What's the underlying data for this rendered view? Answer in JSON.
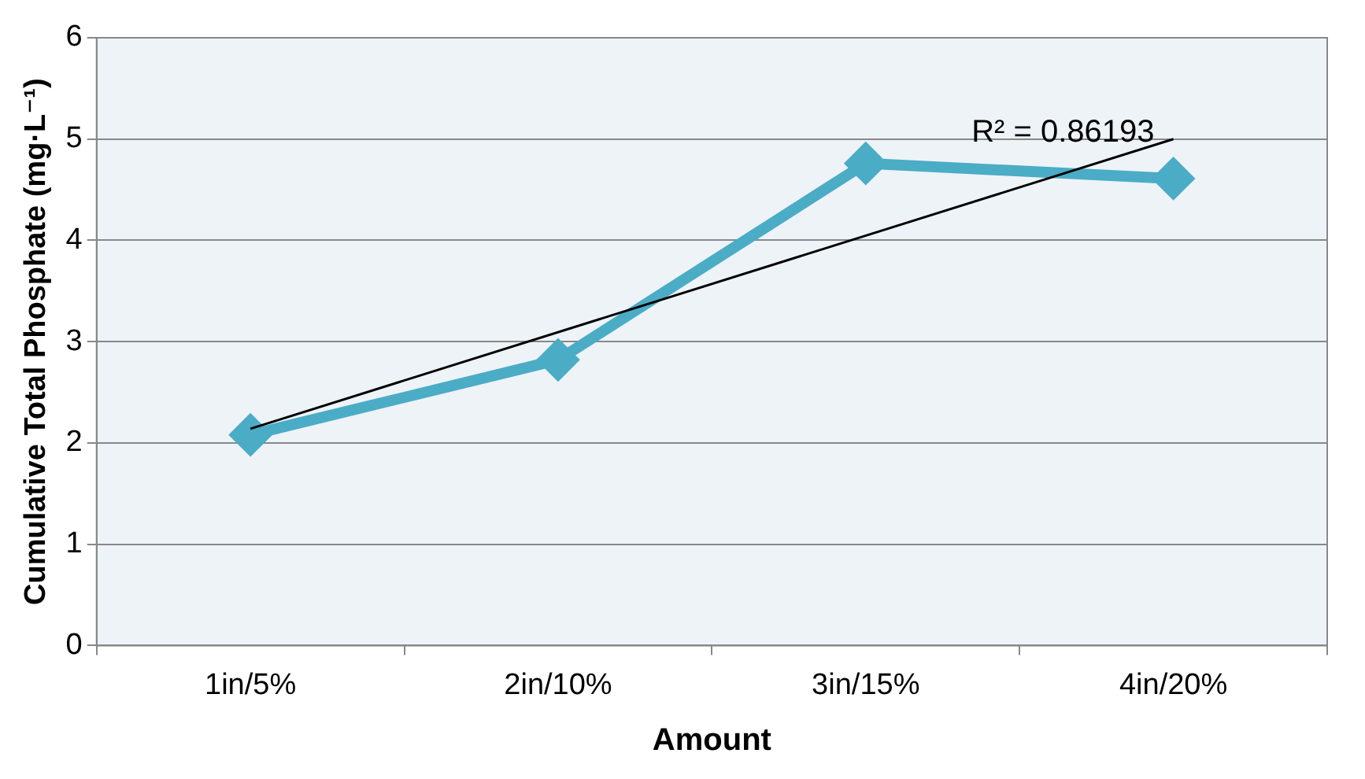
{
  "chart_data": {
    "type": "line",
    "xlabel": "Amount",
    "ylabel": "Cumulative Total Phosphate (mg·L⁻¹)",
    "categories": [
      "1in/5%",
      "2in/10%",
      "3in/15%",
      "4in/20%"
    ],
    "series": [
      {
        "color": "#4bacc6",
        "values": [
          2.08,
          2.82,
          4.76,
          4.61
        ],
        "marker": "diamond"
      },
      {
        "color": "#000000",
        "x": [
          "1in/5%",
          "4in/20%"
        ],
        "values": [
          2.14,
          5.0
        ],
        "marker": "none"
      }
    ],
    "ylim": [
      0,
      6
    ],
    "yticks": [
      0,
      1,
      2,
      3,
      4,
      5,
      6
    ],
    "grid": "y",
    "legend": false,
    "annotations": [
      "R² = 0.86193"
    ]
  }
}
